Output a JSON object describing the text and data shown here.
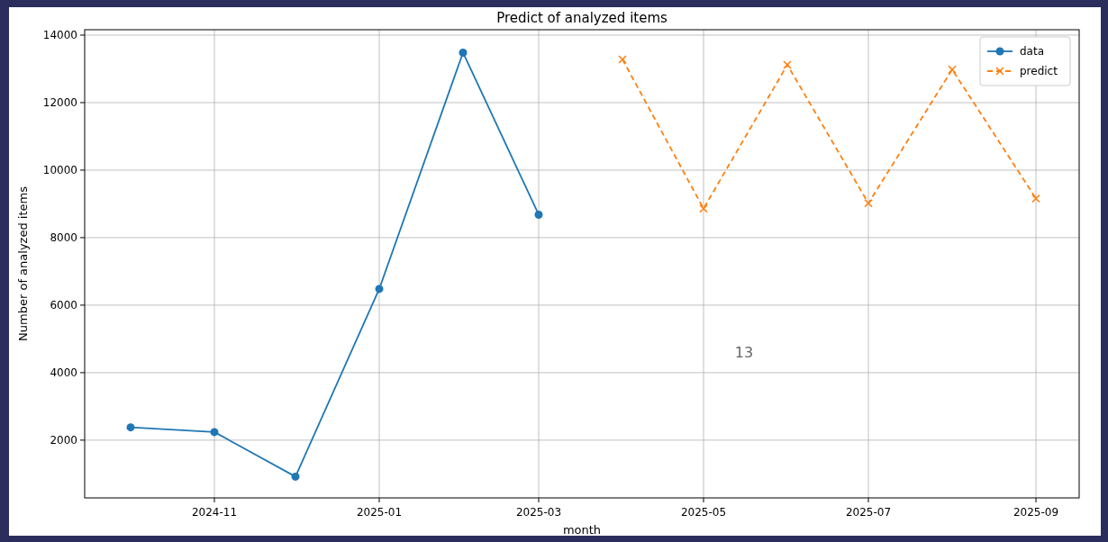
{
  "chart_data": {
    "type": "line",
    "title": "Predict of analyzed items",
    "xlabel": "month",
    "ylabel": "Number of analyzed items",
    "xlim": [
      "2024-09-14",
      "2025-09-17"
    ],
    "xticks": [
      "2024-11",
      "2025-01",
      "2025-03",
      "2025-05",
      "2025-07",
      "2025-09"
    ],
    "ylim": [
      290,
      14160
    ],
    "yticks": [
      2000,
      4000,
      6000,
      8000,
      10000,
      12000,
      14000
    ],
    "grid": true,
    "legend": "top right",
    "annotations": [
      "13"
    ],
    "series": [
      {
        "name": "data",
        "color": "#1f77b4",
        "marker": "circle",
        "line_style": "solid",
        "x": [
          "2024-10",
          "2024-11",
          "2024-12",
          "2025-01",
          "2025-02",
          "2025-03"
        ],
        "values": [
          2380,
          2240,
          920,
          6480,
          13480,
          8680
        ]
      },
      {
        "name": "predict",
        "color": "#ff7f0e",
        "marker": "cross",
        "line_style": "dashed",
        "x": [
          "2025-04",
          "2025-05",
          "2025-06",
          "2025-07",
          "2025-08",
          "2025-09"
        ],
        "values": [
          13280,
          8860,
          13120,
          9020,
          12980,
          9160
        ]
      }
    ]
  }
}
